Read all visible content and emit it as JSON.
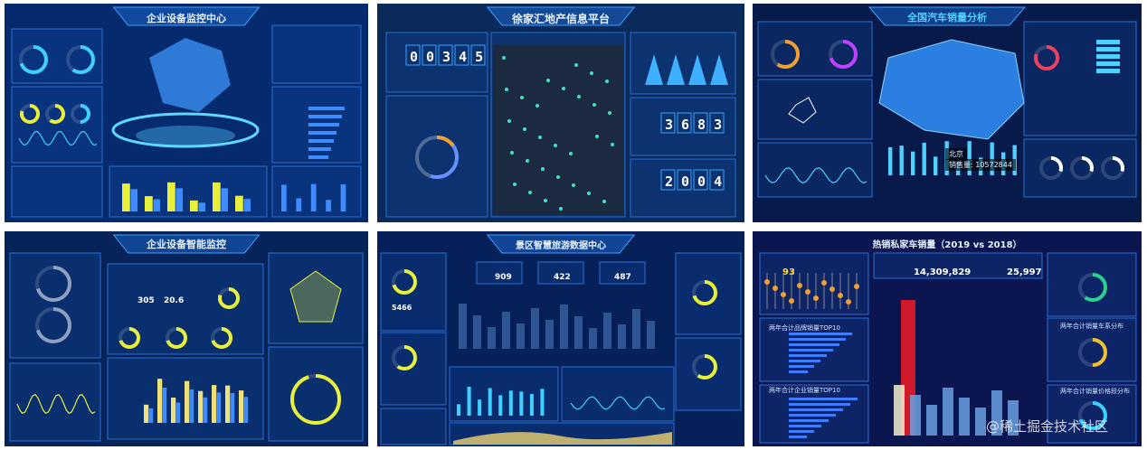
{
  "panels": [
    {
      "title": "企业设备监控中心"
    },
    {
      "title": "徐家汇地产信息平台",
      "counters": [
        "00345",
        "3683",
        "2004"
      ]
    },
    {
      "title": "全国汽车销量分析",
      "tooltip": {
        "city": "北京",
        "sales": "销售量: 10572844"
      }
    },
    {
      "title": "企业设备智能监控",
      "stats": [
        "305",
        "20.6"
      ]
    },
    {
      "title": "景区智慧旅游数据中心",
      "stats": [
        "909",
        "422",
        "487"
      ],
      "total": "5466"
    },
    {
      "title": "热销私家车销量（2019 vs 2018）",
      "stats": [
        "93",
        "14,309,829",
        "25,997"
      ],
      "subtitles": [
        "两年合计品牌销量TOP10",
        "两年合计企业销量TOP10",
        "两年合计销量车系分布",
        "两年合计销量价格段分布"
      ]
    }
  ],
  "watermark": "@稀土掘金技术社区"
}
